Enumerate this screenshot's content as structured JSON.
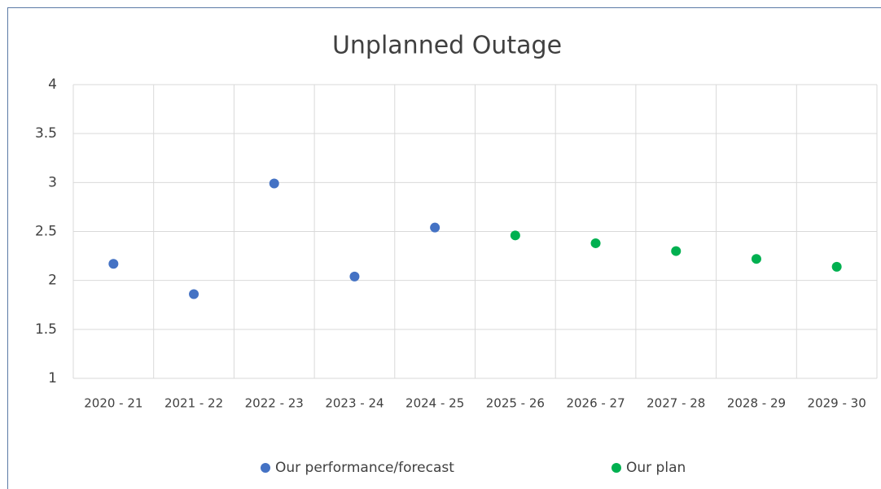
{
  "chart_data": {
    "type": "scatter",
    "title": "Unplanned Outage",
    "categories": [
      "2020 - 21",
      "2021 - 22",
      "2022 - 23",
      "2023 - 24",
      "2024 - 25",
      "2025 - 26",
      "2026 - 27",
      "2027 - 28",
      "2028 - 29",
      "2029 - 30"
    ],
    "series": [
      {
        "name": "Our performance/forecast",
        "color": "#4472c4",
        "values": [
          2.17,
          1.86,
          2.99,
          2.04,
          2.54,
          null,
          null,
          null,
          null,
          null
        ]
      },
      {
        "name": "Our plan",
        "color": "#00b050",
        "values": [
          null,
          null,
          null,
          null,
          null,
          2.46,
          2.38,
          2.3,
          2.22,
          2.14
        ]
      }
    ],
    "ylim": [
      1,
      4
    ],
    "yticks": [
      1,
      1.5,
      2,
      2.5,
      3,
      3.5,
      4
    ],
    "grid": true,
    "legend": "bottom"
  }
}
